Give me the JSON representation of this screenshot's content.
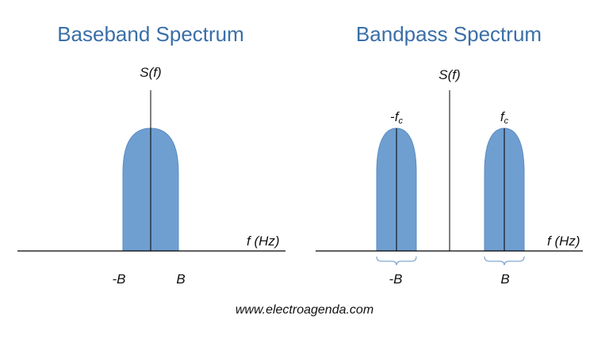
{
  "baseband": {
    "title": "Baseband Spectrum",
    "y_axis_label": "S(f)",
    "x_axis_label": "f (Hz)",
    "tick_left": "-B",
    "tick_right": "B"
  },
  "bandpass": {
    "title": "Bandpass Spectrum",
    "y_axis_label": "S(f)",
    "x_axis_label": "f (Hz)",
    "neg_carrier_prefix": "-f",
    "pos_carrier_prefix": "f",
    "carrier_subscript": "c",
    "tick_left": "-B",
    "tick_right": "B"
  },
  "colors": {
    "title": "#3a6fa8",
    "lobe_fill": "#6f9ed1",
    "lobe_stroke": "#4a7bb5",
    "axis": "#000000",
    "brace": "#7fa6cf"
  },
  "footer": {
    "website": "www.electroagenda.com"
  }
}
